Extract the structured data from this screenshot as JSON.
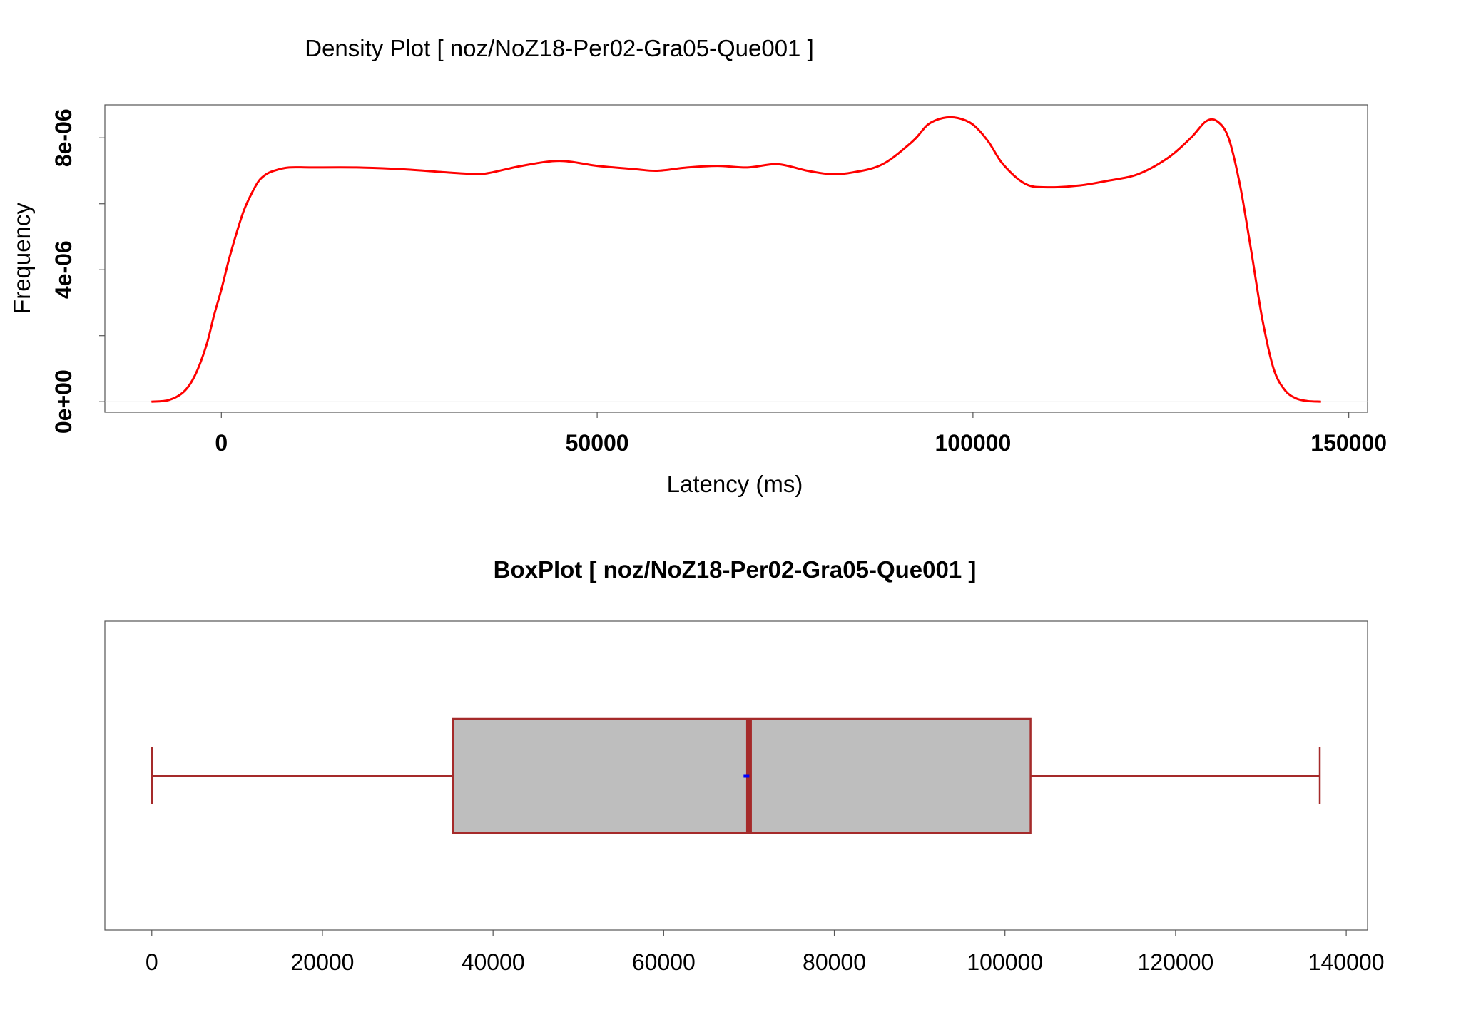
{
  "chart_data": [
    {
      "type": "line",
      "title": "Density Plot [ noz/NoZ18-Per02-Gra05-Que001 ]",
      "xlabel": "Latency (ms)",
      "ylabel": "Frequency",
      "xlim": [
        -15500,
        152500
      ],
      "ylim": [
        -3.2e-07,
        9e-06
      ],
      "x_ticks": [
        0,
        50000,
        100000,
        150000
      ],
      "x_tick_labels": [
        "0",
        "50000",
        "100000",
        "150000"
      ],
      "y_ticks": [
        0,
        2e-06,
        4e-06,
        6e-06,
        8e-06
      ],
      "y_tick_labels": [
        "0e+00",
        "4e-06",
        "8e-06"
      ],
      "y_labeled_ticks": [
        0,
        4e-06,
        8e-06
      ],
      "line_color": "#ff0000",
      "series": [
        {
          "x": [
            -9300,
            -7000,
            -5000,
            -3500,
            -2000,
            -1000,
            0,
            1000,
            2000,
            3000,
            4000,
            5000,
            6000,
            7000,
            9000,
            12000,
            18000,
            24000,
            30000,
            34000,
            36000,
            40000,
            45000,
            50000,
            55000,
            58000,
            62000,
            66000,
            70000,
            74000,
            78000,
            81000,
            84000,
            88000,
            92000,
            94000,
            96000,
            98000,
            100000,
            102000,
            104000,
            107000,
            110000,
            114000,
            118000,
            122000,
            126000,
            129000,
            131000,
            132500,
            134000,
            135500,
            137000,
            138500,
            140000,
            141500,
            143000,
            144500,
            146300
          ],
          "y": [
            0.0,
            5e-08,
            3e-07,
            8e-07,
            1.7e-06,
            2.6e-06,
            3.4e-06,
            4.3e-06,
            5.1e-06,
            5.8e-06,
            6.3e-06,
            6.7e-06,
            6.9e-06,
            7e-06,
            7.1e-06,
            7.1e-06,
            7.1e-06,
            7.05e-06,
            6.95e-06,
            6.9e-06,
            6.95e-06,
            7.15e-06,
            7.3e-06,
            7.15e-06,
            7.05e-06,
            7e-06,
            7.1e-06,
            7.15e-06,
            7.1e-06,
            7.2e-06,
            7e-06,
            6.9e-06,
            6.95e-06,
            7.2e-06,
            7.9e-06,
            8.4e-06,
            8.6e-06,
            8.6e-06,
            8.4e-06,
            7.9e-06,
            7.2e-06,
            6.6e-06,
            6.5e-06,
            6.55e-06,
            6.7e-06,
            6.9e-06,
            7.4e-06,
            8e-06,
            8.5e-06,
            8.5e-06,
            8e-06,
            6.6e-06,
            4.6e-06,
            2.5e-06,
            1e-06,
            3.5e-07,
            1e-07,
            2e-08,
            0.0
          ]
        }
      ]
    },
    {
      "type": "box",
      "title": "BoxPlot [ noz/NoZ18-Per02-Gra05-Que001 ]",
      "xlim": [
        -5500,
        142500
      ],
      "x_ticks": [
        0,
        20000,
        40000,
        60000,
        80000,
        100000,
        120000,
        140000
      ],
      "x_tick_labels": [
        "0",
        "20000",
        "40000",
        "60000",
        "80000",
        "100000",
        "120000",
        "140000"
      ],
      "min": 0,
      "q1": 35300,
      "median": 70000,
      "mean": 69700,
      "q3": 103000,
      "max": 136900,
      "box_fill": "#bebebe",
      "box_stroke": "#a52a2a",
      "mean_marker_color": "#0000ff"
    }
  ]
}
